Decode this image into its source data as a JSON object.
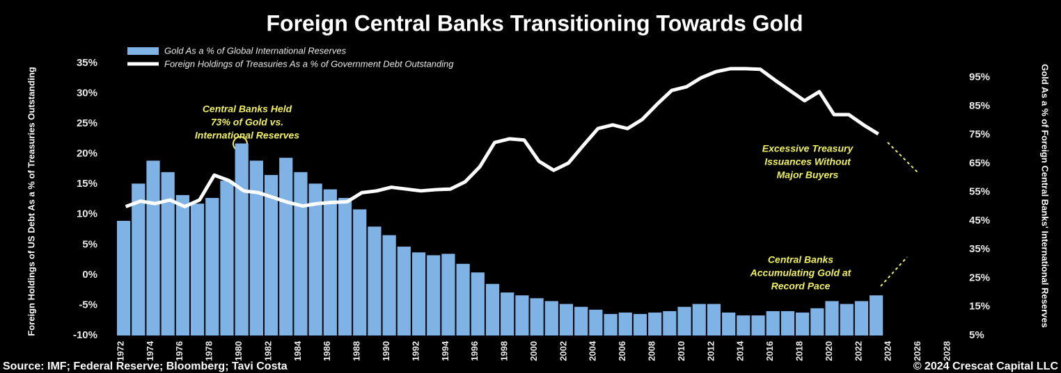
{
  "chart_data": {
    "type": "bar",
    "title": "Foreign Central Banks Transitioning Towards Gold",
    "y_label": "Foreign Holdings of US Debt As a % of Treasuries Outstanding",
    "y2_label": "Gold As a % of Foreign Central Banks' International Reserves",
    "x": [
      1972,
      1973,
      1974,
      1975,
      1976,
      1977,
      1978,
      1979,
      1980,
      1981,
      1982,
      1983,
      1984,
      1985,
      1986,
      1987,
      1988,
      1989,
      1990,
      1991,
      1992,
      1993,
      1994,
      1995,
      1996,
      1997,
      1998,
      1999,
      2000,
      2001,
      2002,
      2003,
      2004,
      2005,
      2006,
      2007,
      2008,
      2009,
      2010,
      2011,
      2012,
      2013,
      2014,
      2015,
      2016,
      2017,
      2018,
      2019,
      2020,
      2021,
      2022,
      2023
    ],
    "xlim": [
      1972,
      2028
    ],
    "xticks": [
      1972,
      1974,
      1976,
      1978,
      1980,
      1982,
      1984,
      1986,
      1988,
      1990,
      1992,
      1994,
      1996,
      1998,
      2000,
      2002,
      2004,
      2006,
      2008,
      2010,
      2012,
      2014,
      2016,
      2018,
      2020,
      2022,
      2024,
      2026,
      2028
    ],
    "ylim": [
      -10,
      35
    ],
    "yticks": [
      {
        "value": -10,
        "label": "-10%"
      },
      {
        "value": -5,
        "label": "-5%"
      },
      {
        "value": 0,
        "label": "0%"
      },
      {
        "value": 5,
        "label": "5%"
      },
      {
        "value": 10,
        "label": "10%"
      },
      {
        "value": 15,
        "label": "15%"
      },
      {
        "value": 20,
        "label": "20%"
      },
      {
        "value": 25,
        "label": "25%"
      },
      {
        "value": 30,
        "label": "30%"
      },
      {
        "value": 35,
        "label": "35%"
      }
    ],
    "y2lim": [
      5,
      100
    ],
    "y2ticks": [
      {
        "value": 5,
        "label": "5%"
      },
      {
        "value": 15,
        "label": "15%"
      },
      {
        "value": 25,
        "label": "25%"
      },
      {
        "value": 35,
        "label": "35%"
      },
      {
        "value": 45,
        "label": "45%"
      },
      {
        "value": 55,
        "label": "55%"
      },
      {
        "value": 65,
        "label": "65%"
      },
      {
        "value": 75,
        "label": "75%"
      },
      {
        "value": 85,
        "label": "85%"
      },
      {
        "value": 95,
        "label": "95%"
      }
    ],
    "series": [
      {
        "name": "Gold As a % of Global International Reserves",
        "type": "bar",
        "axis": "y2",
        "color": "#7fb2e5",
        "values": [
          45,
          58,
          66,
          62,
          54,
          51,
          53,
          59,
          72,
          66,
          61,
          67,
          62,
          58,
          56,
          53,
          49,
          43,
          40,
          36,
          34,
          33,
          33.5,
          30,
          27,
          23,
          20,
          19,
          18,
          17,
          16,
          15,
          14,
          12.5,
          13,
          12.5,
          13,
          13.5,
          15,
          16,
          16,
          13,
          12,
          12,
          13.5,
          13.5,
          13,
          14.5,
          17,
          16,
          17,
          19
        ]
      },
      {
        "name": "Foreign Holdings of Treasuries As a % of Government Debt Outstanding",
        "type": "line",
        "color": "#ffffff",
        "values": [
          11.3,
          12.2,
          11.8,
          12.4,
          11.3,
          12.4,
          16.5,
          15.6,
          13.9,
          13.6,
          12.8,
          12,
          11.4,
          11.8,
          12,
          12.1,
          13.6,
          13.9,
          14.5,
          14.2,
          13.9,
          14.1,
          14.2,
          15.4,
          17.9,
          21.9,
          22.5,
          22.3,
          18.8,
          17.3,
          18.5,
          21.4,
          24.2,
          24.8,
          24.2,
          25.7,
          28.2,
          30.5,
          31.1,
          32.6,
          33.6,
          34.1,
          34.1,
          34,
          32.2,
          30.5,
          28.8,
          30.3,
          26.5,
          26.5,
          24.8,
          23.3
        ]
      }
    ],
    "annotations": [
      {
        "lines": [
          "Central Banks Held",
          "73% of Gold vs.",
          "International Reserves"
        ]
      },
      {
        "lines": [
          "Excessive Treasury",
          "Issuances Without",
          "Major Buyers"
        ]
      },
      {
        "lines": [
          "Central Banks",
          "Accumulating Gold at",
          "Record Pace"
        ]
      }
    ],
    "source": "Source: IMF; Federal Reserve; Bloomberg; Tavi Costa",
    "copyright": "© 2024 Crescat Capital LLC"
  }
}
